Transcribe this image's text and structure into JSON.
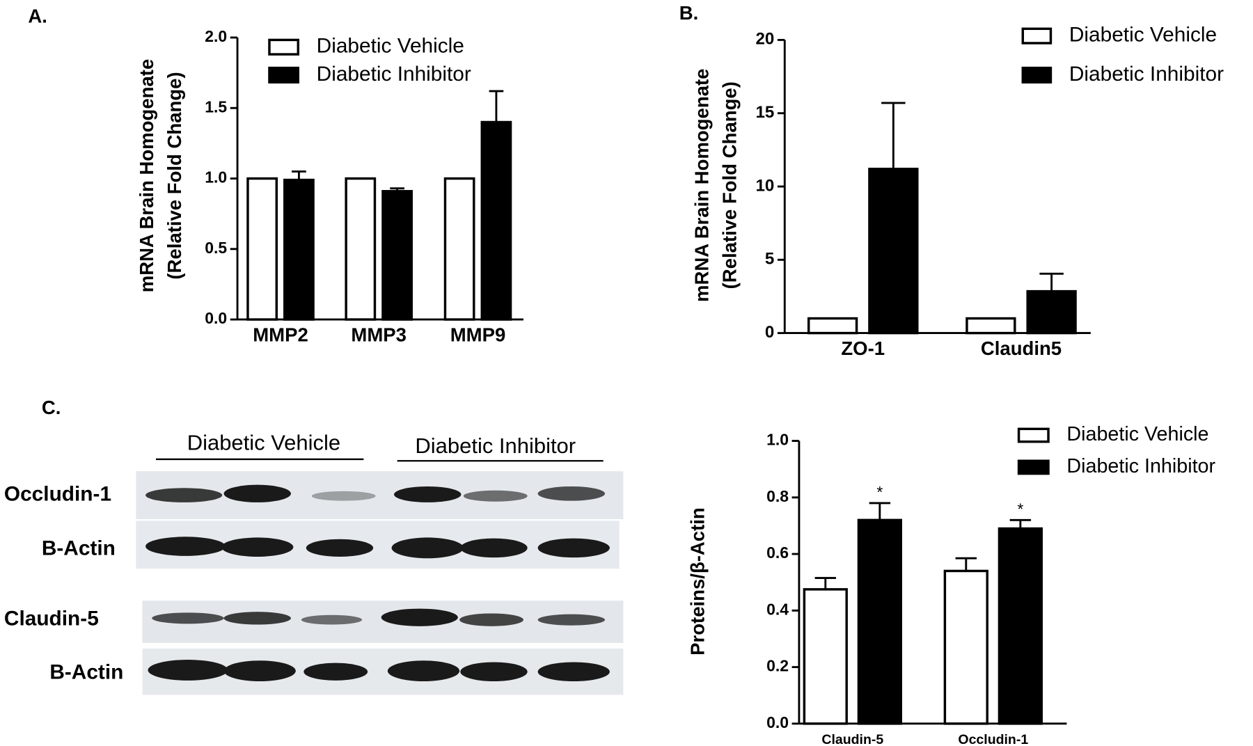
{
  "chart_data": [
    {
      "type": "bar",
      "panel_label": "A.",
      "ylabel": [
        "mRNA Brain Homogenate",
        "(Relative Fold Change)"
      ],
      "categories": [
        "MMP2",
        "MMP3",
        "MMP9"
      ],
      "series": [
        {
          "name": "Diabetic Vehicle",
          "color": "#ffffff",
          "values": [
            1.0,
            1.0,
            1.0
          ]
        },
        {
          "name": "Diabetic Inhibitor",
          "color": "#000000",
          "values": [
            0.99,
            0.91,
            1.4
          ],
          "errors": [
            0.06,
            0.02,
            0.22
          ]
        }
      ],
      "ylim": [
        0,
        2.0
      ],
      "yticks": [
        {
          "value": 0,
          "label": "0.0"
        },
        0.5,
        {
          "value": 1,
          "label": "1.0"
        },
        1.5,
        {
          "value": 2,
          "label": "2.0"
        }
      ]
    },
    {
      "type": "bar",
      "panel_label": "B.",
      "ylabel": [
        "mRNA Brain Homogenate",
        "(Relative Fold Change)"
      ],
      "categories": [
        "ZO-1",
        "Claudin5"
      ],
      "series": [
        {
          "name": "Diabetic Vehicle",
          "color": "#ffffff",
          "values": [
            1,
            1
          ]
        },
        {
          "name": "Diabetic Inhibitor",
          "color": "#000000",
          "values": [
            11.2,
            2.85
          ],
          "errors": [
            4.5,
            1.2
          ]
        }
      ],
      "ylim": [
        0,
        20
      ],
      "yticks": [
        0,
        5,
        10,
        15,
        20
      ]
    },
    {
      "type": "bar",
      "ylabel": [
        "Proteins/β-Actin"
      ],
      "categories": [
        "Claudin-5",
        "Occludin-1"
      ],
      "series": [
        {
          "name": "Diabetic Vehicle",
          "color": "#ffffff",
          "values": [
            0.475,
            0.54
          ],
          "errors": [
            0.04,
            0.045
          ]
        },
        {
          "name": "Diabetic Inhibitor",
          "color": "#000000",
          "values": [
            0.72,
            0.69
          ],
          "errors": [
            0.06,
            0.03
          ],
          "labels": [
            "*",
            "*"
          ]
        }
      ],
      "ylim": [
        0,
        1.0
      ],
      "yticks": [
        {
          "value": 0,
          "label": "0.0"
        },
        0.2,
        0.4,
        0.6,
        0.8,
        {
          "value": 1,
          "label": "1.0"
        }
      ]
    }
  ],
  "blot": {
    "panel_label": "C.",
    "groups": [
      "Diabetic Vehicle",
      "Diabetic Inhibitor"
    ],
    "rows": [
      "Occludin-1",
      "B-Actin",
      "Claudin-5",
      "B-Actin"
    ]
  }
}
